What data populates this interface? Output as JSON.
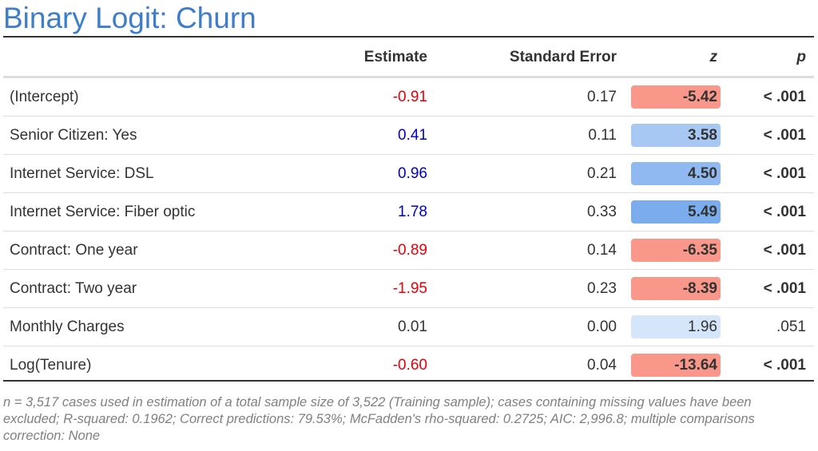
{
  "title": "Binary Logit: Churn",
  "headers": {
    "estimate": "Estimate",
    "standard_error": "Standard Error",
    "z": "z",
    "p": "p"
  },
  "colors": {
    "negative_text": "#e8000b",
    "positive_text": "#0000cc",
    "neutral_text": "#333333",
    "title": "#3e7dcc"
  },
  "rows": [
    {
      "label": "(Intercept)",
      "estimate": "-0.91",
      "estimate_sign": "negative",
      "se": "0.17",
      "z": "-5.42",
      "z_color": "#f9988a",
      "z_bold": true,
      "p": "< .001",
      "p_bold": true
    },
    {
      "label": "Senior Citizen: Yes",
      "estimate": "0.41",
      "estimate_sign": "positive",
      "se": "0.11",
      "z": "3.58",
      "z_color": "#a6c8f3",
      "z_bold": true,
      "p": "< .001",
      "p_bold": true
    },
    {
      "label": "Internet Service: DSL",
      "estimate": "0.96",
      "estimate_sign": "positive",
      "se": "0.21",
      "z": "4.50",
      "z_color": "#8fb9f0",
      "z_bold": true,
      "p": "< .001",
      "p_bold": true
    },
    {
      "label": "Internet Service: Fiber optic",
      "estimate": "1.78",
      "estimate_sign": "positive",
      "se": "0.33",
      "z": "5.49",
      "z_color": "#7aacee",
      "z_bold": true,
      "p": "< .001",
      "p_bold": true
    },
    {
      "label": "Contract: One year",
      "estimate": "-0.89",
      "estimate_sign": "negative",
      "se": "0.14",
      "z": "-6.35",
      "z_color": "#f9988a",
      "z_bold": true,
      "p": "< .001",
      "p_bold": true
    },
    {
      "label": "Contract: Two year",
      "estimate": "-1.95",
      "estimate_sign": "negative",
      "se": "0.23",
      "z": "-8.39",
      "z_color": "#f9988a",
      "z_bold": true,
      "p": "< .001",
      "p_bold": true
    },
    {
      "label": "Monthly Charges",
      "estimate": "0.01",
      "estimate_sign": "neutral",
      "se": "0.00",
      "z": "1.96",
      "z_color": "#d5e5fa",
      "z_bold": false,
      "p": ".051",
      "p_bold": false
    },
    {
      "label": "Log(Tenure)",
      "estimate": "-0.60",
      "estimate_sign": "negative",
      "se": "0.04",
      "z": "-13.64",
      "z_color": "#f9988a",
      "z_bold": true,
      "p": "< .001",
      "p_bold": true
    }
  ],
  "footnote": "n = 3,517 cases used in estimation of a total sample size of 3,522 (Training sample); cases containing missing values have been excluded; R-squared: 0.1962; Correct predictions: 79.53%; McFadden's rho-squared: 0.2725; AIC: 2,996.8; multiple comparisons correction: None"
}
